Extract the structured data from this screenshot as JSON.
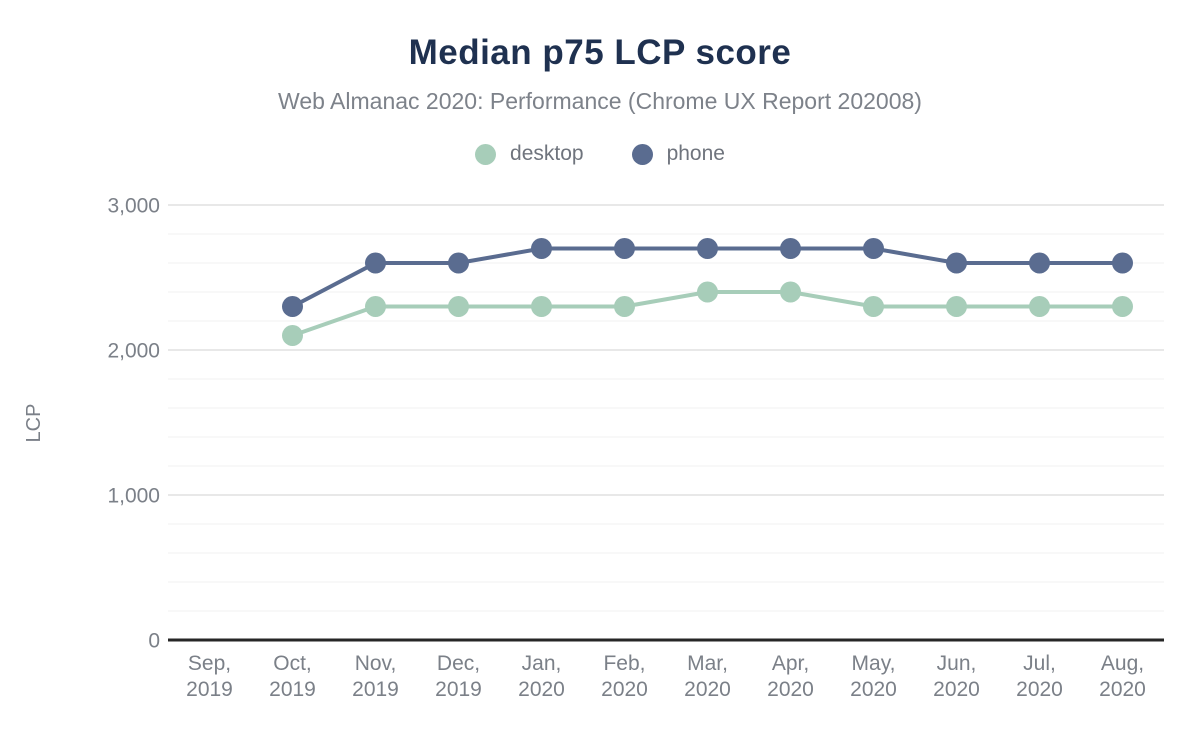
{
  "header": {
    "title": "Median p75 LCP score",
    "subtitle": "Web Almanac 2020: Performance (Chrome UX Report 202008)"
  },
  "chart_data": {
    "type": "line",
    "title": "Median p75 LCP score",
    "subtitle": "Web Almanac 2020: Performance (Chrome UX Report 202008)",
    "xlabel": "",
    "ylabel": "LCP",
    "ylim": [
      0,
      3000
    ],
    "grid": true,
    "legend_position": "top",
    "y_major_ticks": [
      {
        "value": 0,
        "label": "0"
      },
      {
        "value": 1000,
        "label": "1,000"
      },
      {
        "value": 2000,
        "label": "2,000"
      },
      {
        "value": 3000,
        "label": "3,000"
      }
    ],
    "y_minor_step": 200,
    "categories": [
      "Sep, 2019",
      "Oct, 2019",
      "Nov, 2019",
      "Dec, 2019",
      "Jan, 2020",
      "Feb, 2020",
      "Mar, 2020",
      "Apr, 2020",
      "May, 2020",
      "Jun, 2020",
      "Jul, 2020",
      "Aug, 2020"
    ],
    "series": [
      {
        "name": "desktop",
        "color": "#a7cdb9",
        "values": [
          null,
          2100,
          2300,
          2300,
          2300,
          2300,
          2400,
          2400,
          2300,
          2300,
          2300,
          2300
        ]
      },
      {
        "name": "phone",
        "color": "#5a6c90",
        "values": [
          null,
          2300,
          2600,
          2600,
          2700,
          2700,
          2700,
          2700,
          2700,
          2600,
          2600,
          2600
        ]
      }
    ]
  },
  "colors": {
    "title": "#1f3150",
    "subtitle_text": "#7d828a",
    "tick_text": "#7b8088",
    "axis_line": "#262626",
    "grid_major": "#e8e8e8",
    "grid_minor": "#f5f5f5",
    "background": "#ffffff",
    "desktop_series": "#a7cdb9",
    "phone_series": "#5a6c90"
  }
}
